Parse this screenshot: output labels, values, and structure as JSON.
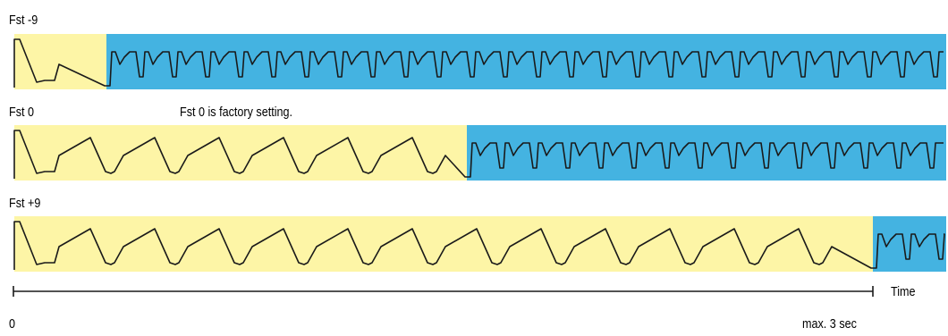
{
  "rows": [
    {
      "label": "Fst -9",
      "note": ""
    },
    {
      "label": "Fst 0",
      "note": "Fst 0 is factory setting."
    },
    {
      "label": "Fst +9",
      "note": ""
    }
  ],
  "axis": {
    "label": "Time",
    "start_label": "0",
    "end_label": "max. 3 sec"
  },
  "colors": {
    "ramp_phase": "#fdf5a6",
    "pulse_phase": "#44b3e1",
    "line": "#1a1a1a"
  }
}
